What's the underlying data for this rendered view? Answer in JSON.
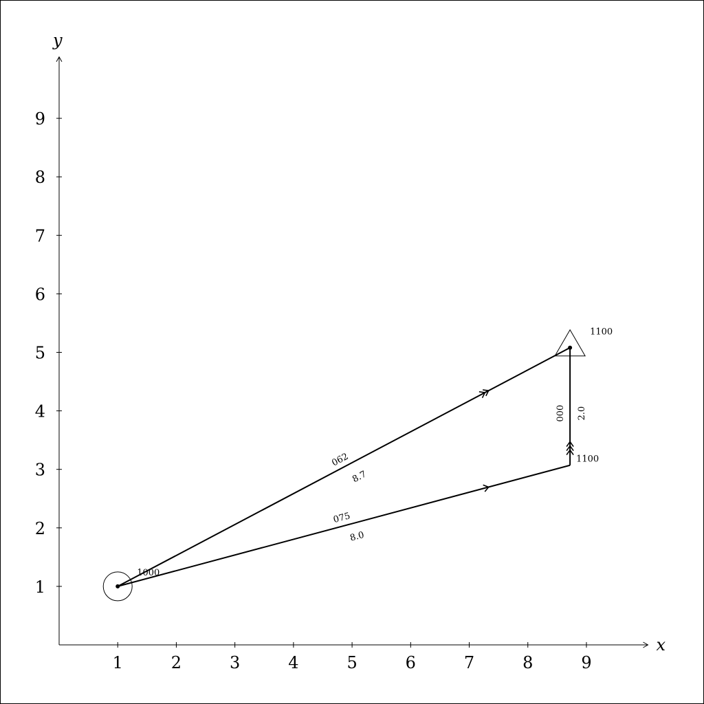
{
  "diagram": {
    "axes": {
      "xlabel": "x",
      "ylabel": "y",
      "xticks": [
        1,
        2,
        3,
        4,
        5,
        6,
        7,
        8,
        9
      ],
      "yticks": [
        1,
        2,
        3,
        4,
        5,
        6,
        7,
        8,
        9
      ],
      "xlim": [
        0,
        10
      ],
      "ylim": [
        0,
        10
      ]
    },
    "points": {
      "start": {
        "x": 1,
        "y": 1,
        "symbol": "circle",
        "time": "1000"
      },
      "turn": {
        "x": 8.72,
        "y": 3.07,
        "symbol": "dot",
        "time": "1100"
      },
      "end": {
        "x": 8.72,
        "y": 5.08,
        "symbol": "triangle",
        "time": "1100"
      }
    },
    "legs": [
      {
        "from": "start",
        "to": "end",
        "heading": "062",
        "distance": "8.7",
        "arrows": 2
      },
      {
        "from": "start",
        "to": "turn",
        "heading": "075",
        "distance": "8.0",
        "arrows": 1
      },
      {
        "from": "turn",
        "to": "end",
        "heading": "000",
        "distance": "2.0",
        "arrows": 3
      }
    ],
    "line_color": "#000000"
  }
}
